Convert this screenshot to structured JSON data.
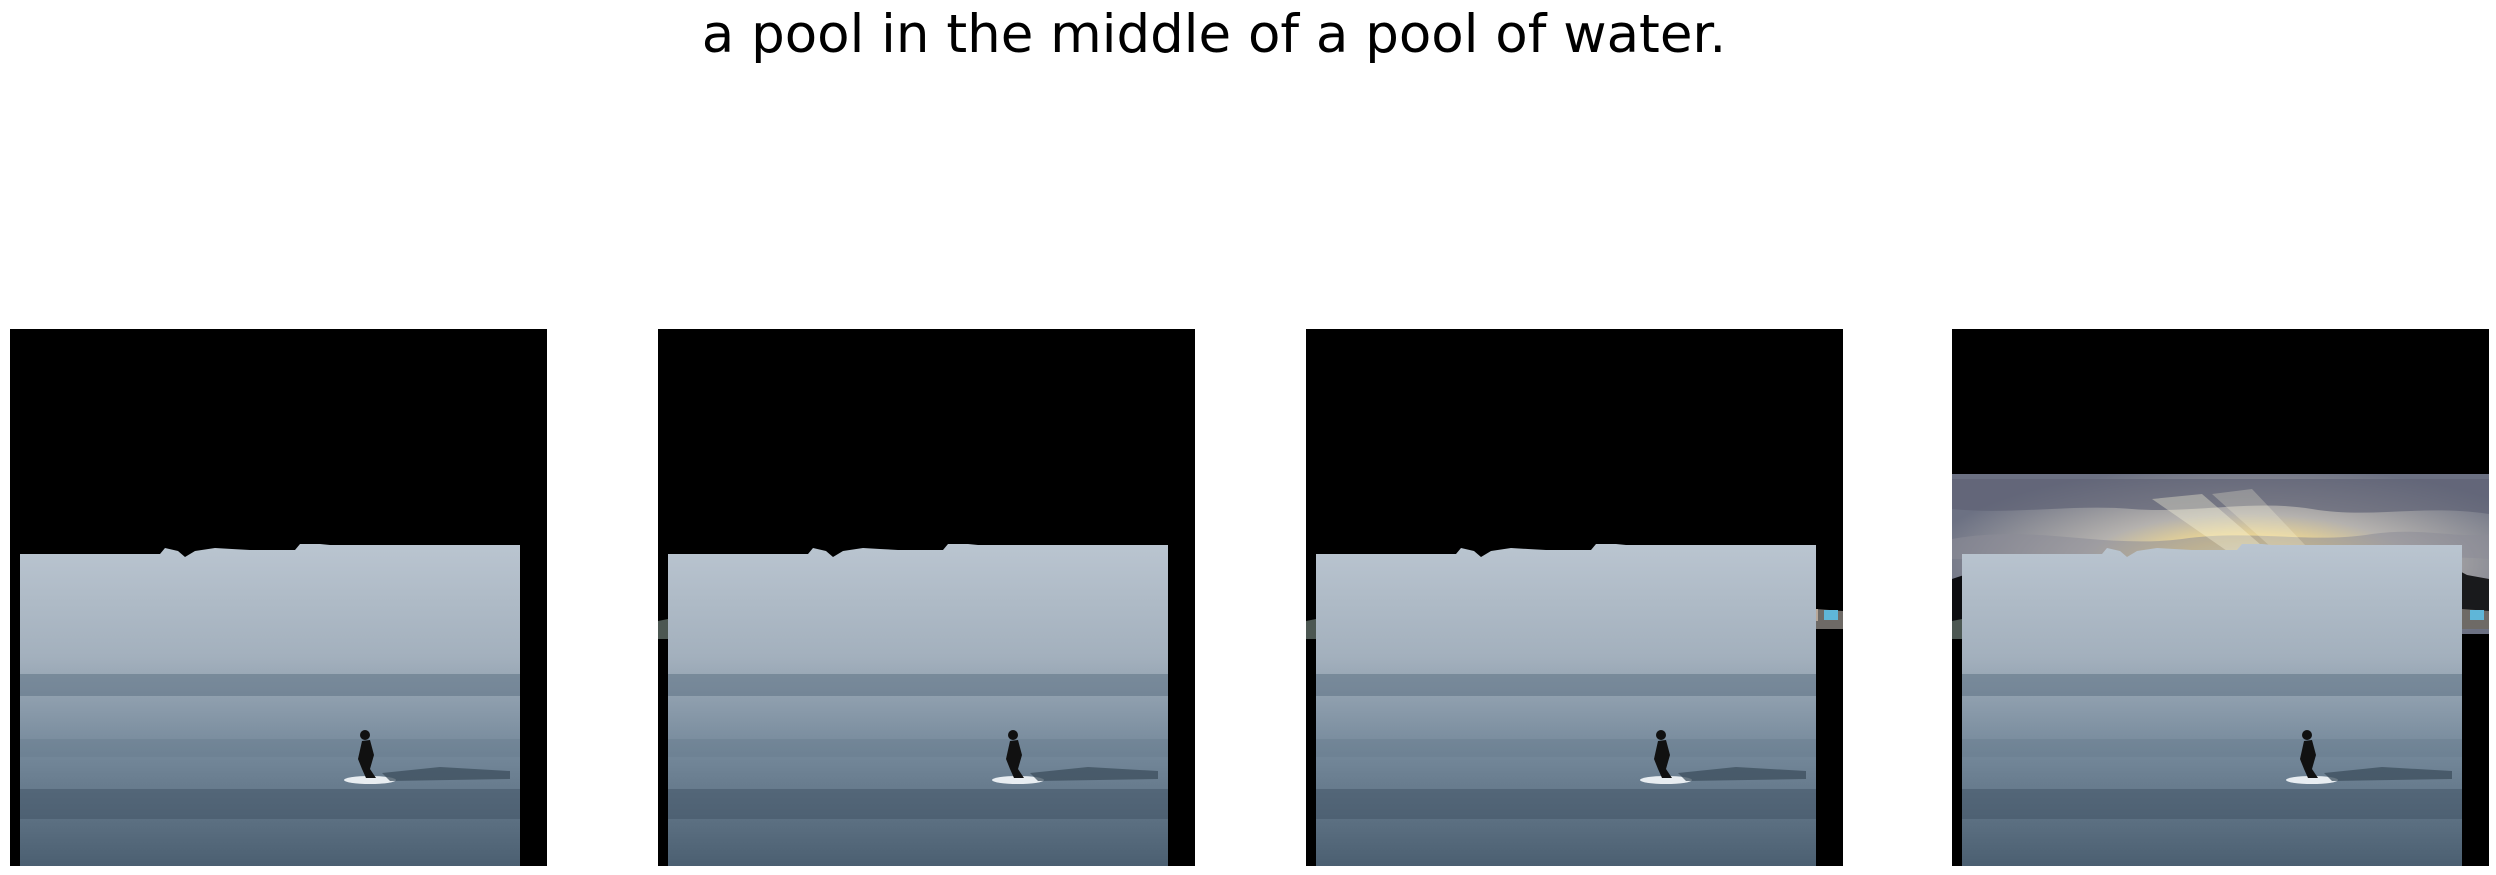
{
  "caption": "a pool in the middle of a pool of water.",
  "colors": {
    "background": "#ffffff",
    "mask": "#000000",
    "water_light": "#b9c4cf",
    "water_dark": "#4b5c6c",
    "treeline": "#4d5651",
    "sky_gold": "#f5e6a0",
    "sky_gray": "#8a8d9e"
  },
  "panels": [
    {
      "name": "panel-1",
      "reveals": [
        "water"
      ]
    },
    {
      "name": "panel-2",
      "reveals": [
        "water",
        "left-treeline"
      ]
    },
    {
      "name": "panel-3",
      "reveals": [
        "water",
        "left-treeline",
        "right-houses"
      ]
    },
    {
      "name": "panel-4",
      "reveals": [
        "water",
        "left-treeline",
        "right-houses",
        "sunset-sky"
      ]
    }
  ]
}
